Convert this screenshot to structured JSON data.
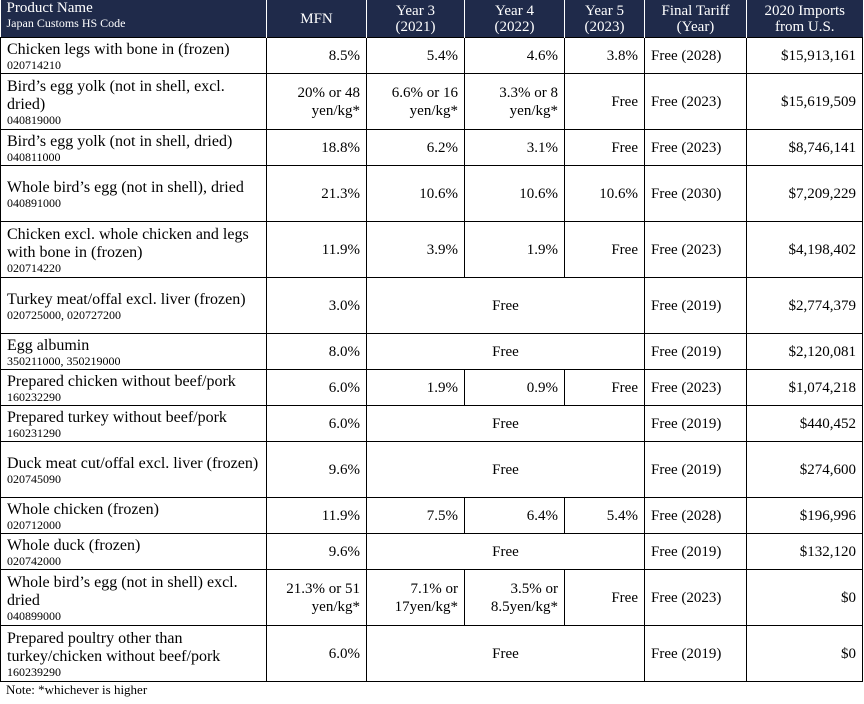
{
  "headers": {
    "product": "Product Name",
    "hs": "Japan Customs HS Code",
    "mfn": "MFN",
    "y3a": "Year 3",
    "y3b": "(2021)",
    "y4a": "Year 4",
    "y4b": "(2022)",
    "y5a": "Year 5",
    "y5b": "(2023)",
    "finala": "Final Tariff",
    "finalb": "(Year)",
    "impa": "2020 Imports",
    "impb": "from U.S."
  },
  "rows": [
    {
      "name": "Chicken legs with bone in (frozen)",
      "code": "020714210",
      "mfn": "8.5%",
      "y3": "5.4%",
      "y4": "4.6%",
      "y5": "3.8%",
      "final": "Free (2028)",
      "imports": "$15,913,161"
    },
    {
      "name": "Bird’s egg yolk (not in shell, excl. dried)",
      "code": "040819000",
      "mfn": "20% or 48 yen/kg*",
      "y3": "6.6% or 16 yen/kg*",
      "y4": "3.3% or 8 yen/kg*",
      "y5": "Free",
      "final": "Free (2023)",
      "imports": "$15,619,509"
    },
    {
      "name": "Bird’s egg yolk (not in shell, dried)",
      "code": "040811000",
      "mfn": "18.8%",
      "y3": "6.2%",
      "y4": "3.1%",
      "y5": "Free",
      "final": "Free (2023)",
      "imports": "$8,746,141"
    },
    {
      "name": "Whole bird’s egg (not in shell), dried",
      "code": "040891000",
      "mfn": "21.3%",
      "y3": "10.6%",
      "y4": "10.6%",
      "y5": "10.6%",
      "final": "Free (2030)",
      "imports": "$7,209,229"
    },
    {
      "name": "Chicken excl. whole chicken and legs with bone in (frozen)",
      "code": "020714220",
      "mfn": "11.9%",
      "y3": "3.9%",
      "y4": "1.9%",
      "y5": "Free",
      "final": "Free (2023)",
      "imports": "$4,198,402"
    },
    {
      "name": "Turkey meat/offal excl. liver (frozen)",
      "code": "020725000, 020727200",
      "mfn": "3.0%",
      "merged": "Free",
      "final": "Free (2019)",
      "imports": "$2,774,379"
    },
    {
      "name": "Egg albumin",
      "code": "350211000, 350219000",
      "mfn": "8.0%",
      "merged": "Free",
      "final": "Free (2019)",
      "imports": "$2,120,081"
    },
    {
      "name": "Prepared chicken without beef/pork",
      "code": "160232290",
      "mfn": "6.0%",
      "y3": "1.9%",
      "y4": "0.9%",
      "y5": "Free",
      "final": "Free (2023)",
      "imports": "$1,074,218"
    },
    {
      "name": "Prepared turkey without beef/pork",
      "code": "160231290",
      "mfn": "6.0%",
      "merged": "Free",
      "final": "Free (2019)",
      "imports": "$440,452"
    },
    {
      "name": "Duck meat cut/offal excl. liver (frozen)",
      "code": "020745090",
      "mfn": "9.6%",
      "merged": "Free",
      "final": "Free (2019)",
      "imports": "$274,600"
    },
    {
      "name": "Whole chicken (frozen)",
      "code": "020712000",
      "mfn": "11.9%",
      "y3": "7.5%",
      "y4": "6.4%",
      "y5": "5.4%",
      "final": "Free (2028)",
      "imports": "$196,996"
    },
    {
      "name": "Whole duck (frozen)",
      "code": "020742000",
      "mfn": "9.6%",
      "merged": "Free",
      "final": "Free (2019)",
      "imports": "$132,120"
    },
    {
      "name": "Whole bird’s egg (not in shell) excl. dried",
      "code": "040899000",
      "mfn": "21.3% or 51 yen/kg*",
      "y3": "7.1% or 17yen/kg*",
      "y4": "3.5% or 8.5yen/kg*",
      "y5": "Free",
      "final": "Free (2023)",
      "imports": "$0"
    },
    {
      "name": "Prepared poultry other than turkey/chicken without beef/pork",
      "code": "160239290",
      "mfn": "6.0%",
      "merged": "Free",
      "final": "Free (2019)",
      "imports": "$0"
    }
  ],
  "note": "Note: *whichever is higher"
}
